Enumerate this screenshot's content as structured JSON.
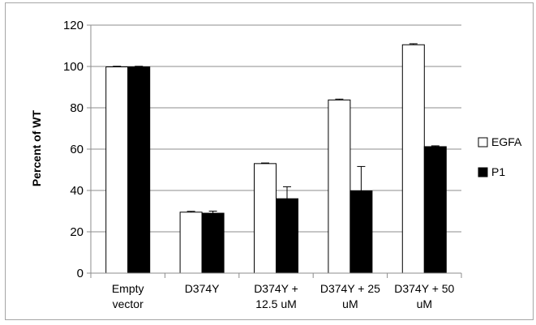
{
  "chart_data": {
    "type": "bar",
    "title": "",
    "ylabel": "Percent of WT",
    "xlabel": "",
    "ylim": [
      0,
      120
    ],
    "yticks": [
      0,
      20,
      40,
      60,
      80,
      100,
      120
    ],
    "grid": true,
    "legend_position": "right",
    "categories": [
      [
        "Empty",
        "vector"
      ],
      [
        "D374Y"
      ],
      [
        "D374Y +",
        "12.5 uM"
      ],
      [
        "D374Y + 25",
        "uM"
      ],
      [
        "D374Y + 50",
        "uM"
      ]
    ],
    "series": [
      {
        "name": "EGFA",
        "color": "#ffffff",
        "values": [
          99.8,
          29.5,
          53.0,
          83.8,
          110.5
        ],
        "errors": [
          0.3,
          0.4,
          0.3,
          0.4,
          0.5
        ]
      },
      {
        "name": "P1",
        "color": "#000000",
        "values": [
          99.8,
          29.0,
          36.0,
          39.8,
          61.2
        ],
        "errors": [
          0.3,
          1.0,
          5.8,
          11.8,
          0.4
        ]
      }
    ]
  }
}
